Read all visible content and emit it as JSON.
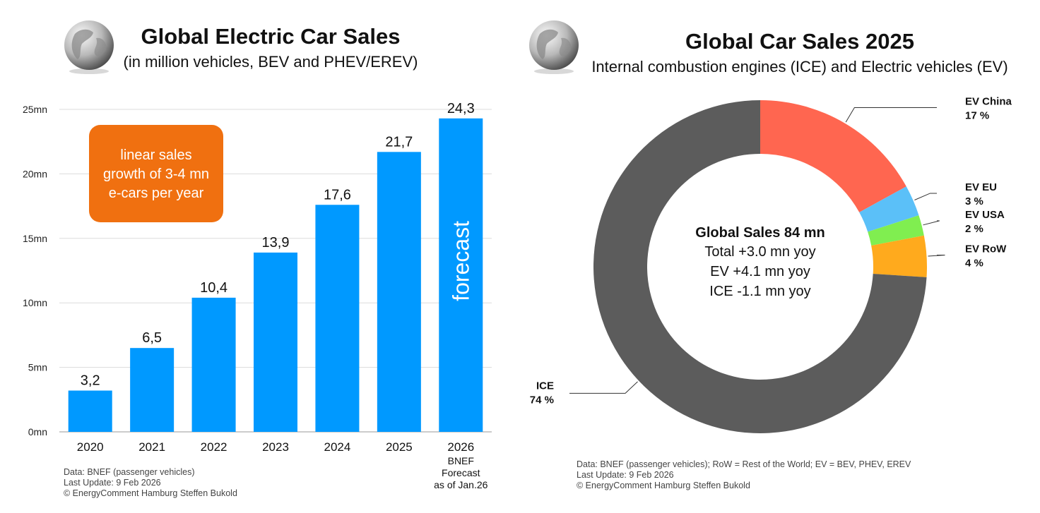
{
  "chart_data": [
    {
      "type": "bar",
      "title": "Global Electric Car Sales",
      "subtitle": "(in million vehicles, BEV and PHEV/EREV)",
      "categories": [
        "2020",
        "2021",
        "2022",
        "2023",
        "2024",
        "2025",
        "2026"
      ],
      "values": [
        3.2,
        6.5,
        10.4,
        13.9,
        17.6,
        21.7,
        24.3
      ],
      "value_labels": [
        "3,2",
        "6,5",
        "10,4",
        "13,9",
        "17,6",
        "21,7",
        "24,3"
      ],
      "category_sublabel": {
        "index": 6,
        "lines": [
          "BNEF",
          "Forecast",
          "as of Jan.26"
        ]
      },
      "yticks": [
        0,
        5,
        10,
        15,
        20,
        25
      ],
      "ytick_labels": [
        "0mn",
        "5mn",
        "10mn",
        "15mn",
        "20mn",
        "25mn"
      ],
      "ylim": [
        0,
        25
      ],
      "grid": true,
      "bar_color": "#0099ff",
      "forecast_label": "forecast",
      "annotation": {
        "lines": [
          "linear sales",
          "growth of 3-4 mn",
          "e-cars per year"
        ],
        "color": "#f07010"
      },
      "source_lines": [
        "Data: BNEF (passenger vehicles)",
        "Last Update: 9 Feb 2026",
        "© EnergyComment Hamburg Steffen Bukold"
      ]
    },
    {
      "type": "pie",
      "title": "Global Car Sales 2025",
      "subtitle": "Internal combustion engines (ICE) and Electric vehicles (EV)",
      "donut": true,
      "slices": [
        {
          "label": "EV China",
          "value": 17,
          "value_label": "17 %",
          "color": "#ff6650"
        },
        {
          "label": "EV EU",
          "value": 3,
          "value_label": "3 %",
          "color": "#5bc0f8"
        },
        {
          "label": "EV USA",
          "value": 2,
          "value_label": "2 %",
          "color": "#80ee50"
        },
        {
          "label": "EV RoW",
          "value": 4,
          "value_label": "4 %",
          "color": "#ffaa1d"
        },
        {
          "label": "ICE",
          "value": 74,
          "value_label": "74 %",
          "color": "#5c5c5c"
        }
      ],
      "center_text": {
        "headline": "Global Sales 84 mn",
        "lines": [
          "Total +3.0 mn yoy",
          "EV +4.1 mn yoy",
          "ICE -1.1 mn yoy"
        ]
      },
      "source_lines": [
        "Data: BNEF (passenger vehicles); RoW = Rest of the World; EV = BEV, PHEV, EREV",
        "Last Update: 9 Feb 2026",
        "© EnergyComment Hamburg Steffen Bukold"
      ]
    }
  ],
  "icons": {
    "left_logo": "globe-icon",
    "right_logo": "globe-icon"
  }
}
